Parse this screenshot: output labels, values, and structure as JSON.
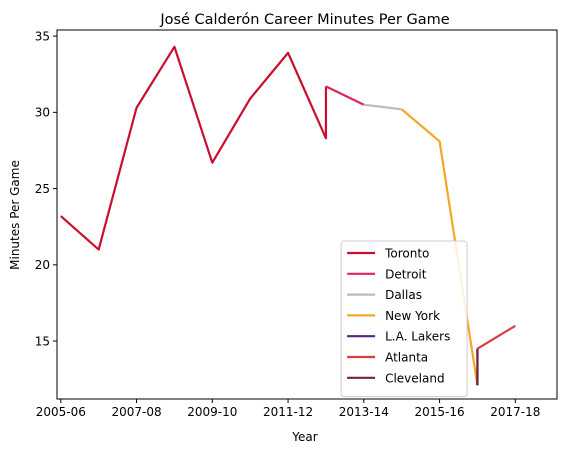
{
  "chart_data": {
    "type": "line",
    "title": "José Calderón  Career Minutes Per Game",
    "xlabel": "Year",
    "ylabel": "Minutes Per Game",
    "xlim": [
      2004.9,
      2018.1
    ],
    "ylim": [
      11.2,
      35.4
    ],
    "x_ticks": [
      {
        "value": 2005,
        "label": "2005-06"
      },
      {
        "value": 2007,
        "label": "2007-08"
      },
      {
        "value": 2009,
        "label": "2009-10"
      },
      {
        "value": 2011,
        "label": "2011-12"
      },
      {
        "value": 2013,
        "label": "2013-14"
      },
      {
        "value": 2015,
        "label": "2015-16"
      },
      {
        "value": 2017,
        "label": "2017-18"
      }
    ],
    "y_ticks": [
      15,
      20,
      25,
      30,
      35
    ],
    "legend_position": "lower-center",
    "series": [
      {
        "name": "Toronto",
        "color": "#c8102e",
        "points": [
          [
            2005,
            23.2
          ],
          [
            2006,
            21.0
          ],
          [
            2007,
            30.3
          ],
          [
            2008,
            34.3
          ],
          [
            2009,
            26.7
          ],
          [
            2010,
            30.9
          ],
          [
            2011,
            33.9
          ],
          [
            2012,
            28.3
          ],
          [
            2012,
            31.7
          ]
        ]
      },
      {
        "name": "Detroit",
        "color": "#e0245e",
        "points": [
          [
            2012,
            31.7
          ],
          [
            2013,
            30.5
          ]
        ]
      },
      {
        "name": "Dallas",
        "color": "#bbbbbb",
        "points": [
          [
            2013,
            30.5
          ],
          [
            2014,
            30.2
          ]
        ]
      },
      {
        "name": "New York",
        "color": "#f5a623",
        "points": [
          [
            2014,
            30.2
          ],
          [
            2015,
            28.1
          ],
          [
            2016,
            12.1
          ]
        ]
      },
      {
        "name": "L.A. Lakers",
        "color": "#552583",
        "points": [
          [
            2016,
            12.1
          ],
          [
            2016,
            14.5
          ]
        ]
      },
      {
        "name": "Atlanta",
        "color": "#e03a3e",
        "points": [
          [
            2016,
            14.5
          ],
          [
            2017,
            16.0
          ]
        ]
      },
      {
        "name": "Cleveland",
        "color": "#6f263d",
        "points": [
          [
            2016,
            12.1
          ],
          [
            2016,
            14.5
          ]
        ]
      }
    ]
  }
}
